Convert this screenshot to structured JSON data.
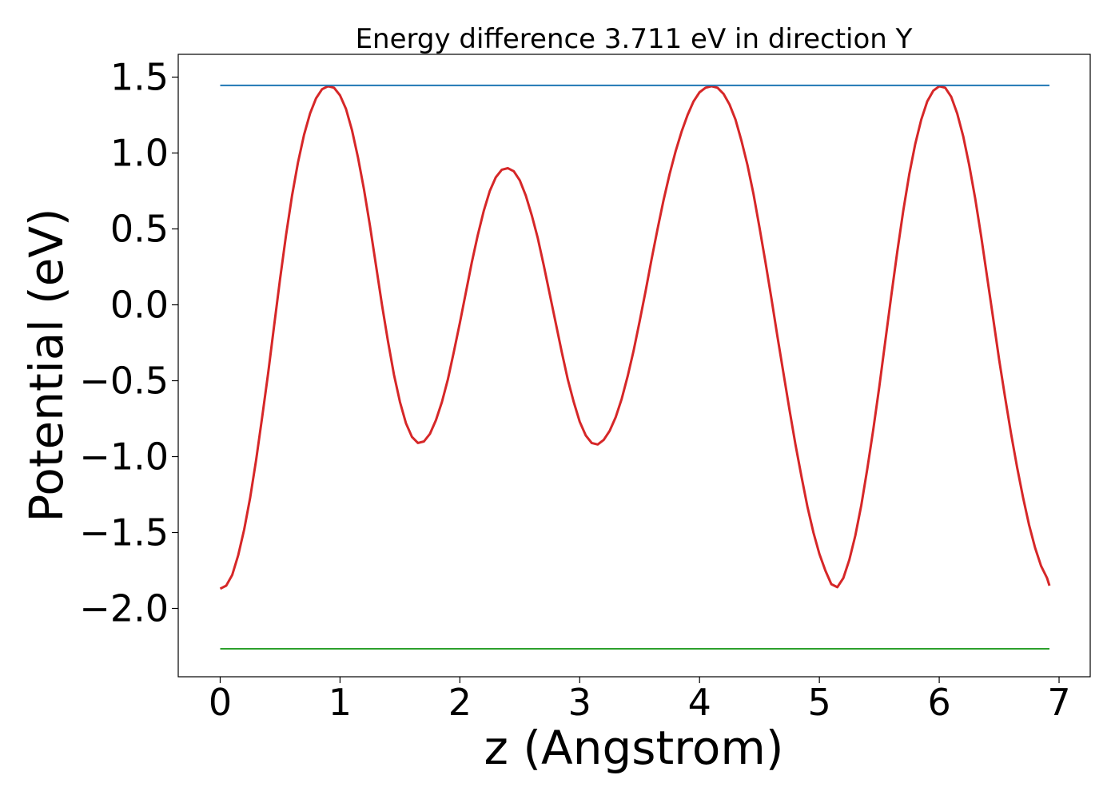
{
  "chart_data": {
    "type": "line",
    "title": "Energy difference 3.711 eV in direction Y",
    "xlabel": "z (Angstrom)",
    "ylabel": "Potential (eV)",
    "xlim": [
      -0.35,
      7.26
    ],
    "ylim": [
      -2.45,
      1.65
    ],
    "xticks": [
      0,
      1,
      2,
      3,
      4,
      5,
      6,
      7
    ],
    "yticks": [
      -2.0,
      -1.5,
      -1.0,
      -0.5,
      0.0,
      0.5,
      1.0,
      1.5
    ],
    "xtick_labels": [
      "0",
      "1",
      "2",
      "3",
      "4",
      "5",
      "6",
      "7"
    ],
    "ytick_labels": [
      "−2.0",
      "−1.5",
      "−1.0",
      "−0.5",
      "0.0",
      "0.5",
      "1.0",
      "1.5"
    ],
    "grid": false,
    "legend": "none",
    "series": [
      {
        "color": "#d62728",
        "x": [
          0.0,
          0.05,
          0.1,
          0.15,
          0.2,
          0.25,
          0.3,
          0.35,
          0.4,
          0.45,
          0.5,
          0.55,
          0.6,
          0.65,
          0.7,
          0.75,
          0.8,
          0.85,
          0.9,
          0.95,
          1.0,
          1.05,
          1.1,
          1.15,
          1.2,
          1.25,
          1.3,
          1.35,
          1.4,
          1.45,
          1.5,
          1.55,
          1.6,
          1.65,
          1.7,
          1.75,
          1.8,
          1.85,
          1.9,
          1.95,
          2.0,
          2.05,
          2.1,
          2.15,
          2.2,
          2.25,
          2.3,
          2.35,
          2.4,
          2.45,
          2.5,
          2.55,
          2.6,
          2.65,
          2.7,
          2.75,
          2.8,
          2.85,
          2.9,
          2.95,
          3.0,
          3.05,
          3.1,
          3.15,
          3.2,
          3.25,
          3.3,
          3.35,
          3.4,
          3.45,
          3.5,
          3.55,
          3.6,
          3.65,
          3.7,
          3.75,
          3.8,
          3.85,
          3.9,
          3.95,
          4.0,
          4.05,
          4.1,
          4.15,
          4.2,
          4.25,
          4.3,
          4.35,
          4.4,
          4.45,
          4.5,
          4.55,
          4.6,
          4.65,
          4.7,
          4.75,
          4.8,
          4.85,
          4.9,
          4.95,
          5.0,
          5.05,
          5.1,
          5.15,
          5.2,
          5.25,
          5.3,
          5.35,
          5.4,
          5.45,
          5.5,
          5.55,
          5.6,
          5.65,
          5.7,
          5.75,
          5.8,
          5.85,
          5.9,
          5.95,
          6.0,
          6.05,
          6.1,
          6.15,
          6.2,
          6.25,
          6.3,
          6.35,
          6.4,
          6.45,
          6.5,
          6.55,
          6.6,
          6.65,
          6.7,
          6.75,
          6.8,
          6.85,
          6.9,
          6.92
        ],
        "y": [
          -1.87,
          -1.85,
          -1.78,
          -1.65,
          -1.48,
          -1.27,
          -1.02,
          -0.74,
          -0.45,
          -0.14,
          0.17,
          0.46,
          0.72,
          0.94,
          1.12,
          1.26,
          1.36,
          1.42,
          1.44,
          1.43,
          1.38,
          1.29,
          1.15,
          0.97,
          0.76,
          0.52,
          0.26,
          0.0,
          -0.24,
          -0.46,
          -0.64,
          -0.78,
          -0.87,
          -0.91,
          -0.9,
          -0.85,
          -0.76,
          -0.64,
          -0.49,
          -0.31,
          -0.12,
          0.08,
          0.28,
          0.46,
          0.62,
          0.75,
          0.84,
          0.89,
          0.9,
          0.88,
          0.82,
          0.72,
          0.59,
          0.44,
          0.26,
          0.07,
          -0.12,
          -0.31,
          -0.49,
          -0.64,
          -0.77,
          -0.86,
          -0.91,
          -0.92,
          -0.89,
          -0.83,
          -0.74,
          -0.62,
          -0.47,
          -0.3,
          -0.11,
          0.09,
          0.3,
          0.5,
          0.69,
          0.86,
          1.01,
          1.14,
          1.25,
          1.34,
          1.4,
          1.43,
          1.44,
          1.43,
          1.39,
          1.32,
          1.22,
          1.08,
          0.92,
          0.73,
          0.51,
          0.28,
          0.04,
          -0.21,
          -0.45,
          -0.69,
          -0.92,
          -1.13,
          -1.33,
          -1.5,
          -1.64,
          -1.75,
          -1.84,
          -1.86,
          -1.8,
          -1.68,
          -1.52,
          -1.32,
          -1.08,
          -0.82,
          -0.54,
          -0.24,
          0.06,
          0.35,
          0.62,
          0.86,
          1.06,
          1.22,
          1.34,
          1.41,
          1.44,
          1.43,
          1.37,
          1.26,
          1.11,
          0.92,
          0.7,
          0.45,
          0.18,
          -0.09,
          -0.36,
          -0.61,
          -0.85,
          -1.07,
          -1.27,
          -1.45,
          -1.6,
          -1.72,
          -1.8,
          -1.85
        ]
      },
      {
        "color": "#1f77b4",
        "x": [
          0.0,
          6.92
        ],
        "y": [
          1.445,
          1.445
        ]
      },
      {
        "color": "#2ca02c",
        "x": [
          0.0,
          6.92
        ],
        "y": [
          -2.266,
          -2.266
        ]
      }
    ]
  }
}
